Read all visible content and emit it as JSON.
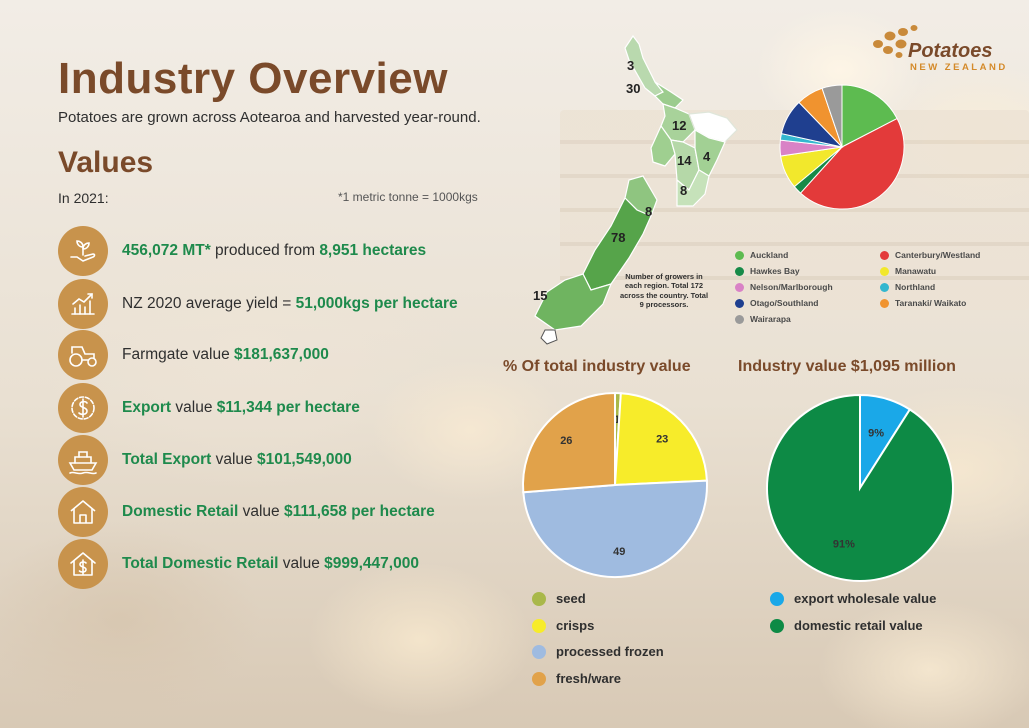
{
  "header": {
    "title": "Industry Overview",
    "subtitle": "Potatoes are grown across Aotearoa and harvested year-round.",
    "values_heading": "Values",
    "year_label": "In 2021:",
    "tonne_note": "*1 metric tonne = 1000kgs"
  },
  "logo": {
    "word": "Potatoes",
    "sub": "NEW ZEALAND",
    "icon": "potato-dots-logo-icon"
  },
  "stats": [
    {
      "icon": "seedling-hand-icon",
      "parts": [
        {
          "t": "456,072 MT*",
          "g": true
        },
        {
          "t": " produced from ",
          "g": false
        },
        {
          "t": "8,951 hectares",
          "g": true
        }
      ]
    },
    {
      "icon": "yield-chart-icon",
      "parts": [
        {
          "t": "NZ 2020 average yield = ",
          "g": false
        },
        {
          "t": "51,000kgs per hectare",
          "g": true
        }
      ]
    },
    {
      "icon": "tractor-icon",
      "parts": [
        {
          "t": "Farmgate value ",
          "g": false
        },
        {
          "t": "$181,637,000",
          "g": true
        }
      ]
    },
    {
      "icon": "dollar-gear-icon",
      "parts": [
        {
          "t": "Export",
          "g": true
        },
        {
          "t": " value ",
          "g": false
        },
        {
          "t": "$11,344 per hectare",
          "g": true
        }
      ]
    },
    {
      "icon": "cargo-ship-icon",
      "parts": [
        {
          "t": "Total Export",
          "g": true
        },
        {
          "t": " value ",
          "g": false
        },
        {
          "t": "$101,549,000",
          "g": true
        }
      ]
    },
    {
      "icon": "house-icon",
      "parts": [
        {
          "t": "Domestic Retail",
          "g": true
        },
        {
          "t": " value ",
          "g": false
        },
        {
          "t": "$111,658  per hectare",
          "g": true
        }
      ]
    },
    {
      "icon": "house-dollar-icon",
      "parts": [
        {
          "t": "Total Domestic Retail",
          "g": true
        },
        {
          "t": " value ",
          "g": false
        },
        {
          "t": "$999,447,000",
          "g": true
        }
      ]
    }
  ],
  "map": {
    "note": "Number of growers in each region. Total 172 across the country. Total 9 processors.",
    "labels": [
      "3",
      "30",
      "12",
      "14",
      "4",
      "8",
      "8",
      "78",
      "15"
    ]
  },
  "colors": {
    "auckland": "#5dbb50",
    "hawkes_bay": "#178a48",
    "nelson": "#d982c6",
    "otago": "#1f3f8f",
    "wairarapa": "#9a9a9a",
    "canterbury": "#e33a3a",
    "manawatu": "#f2e82c",
    "northland": "#33b7cf",
    "taranaki": "#f0932f",
    "seed": "#a9b84a",
    "crisps": "#f7ec2a",
    "processed": "#9fbbe0",
    "fresh": "#e1a24a",
    "export_wholesale": "#1aa8e8",
    "domestic_retail": "#0d8a45",
    "brown": "#7a4a2a",
    "green_text": "#1e8a4c"
  },
  "region_legend": [
    {
      "label": "Auckland",
      "color": "#5dbb50"
    },
    {
      "label": "Canterbury/Westland",
      "color": "#e33a3a"
    },
    {
      "label": "Hawkes Bay",
      "color": "#178a48"
    },
    {
      "label": "Manawatu",
      "color": "#f2e82c"
    },
    {
      "label": "Nelson/Marlborough",
      "color": "#d982c6"
    },
    {
      "label": "Northland",
      "color": "#33b7cf"
    },
    {
      "label": "Otago/Southland",
      "color": "#1f3f8f"
    },
    {
      "label": "Taranaki/ Waikato",
      "color": "#f0932f"
    },
    {
      "label": "Wairarapa",
      "color": "#9a9a9a"
    }
  ],
  "chart_data": [
    {
      "type": "pie",
      "title": "",
      "categories": [
        "Auckland",
        "Canterbury/Westland",
        "Hawkes Bay",
        "Manawatu",
        "Nelson/Marlborough",
        "Northland",
        "Otago/Southland",
        "Taranaki/ Waikato",
        "Wairarapa"
      ],
      "values": [
        17.4,
        44.2,
        2.3,
        8.7,
        4.1,
        1.7,
        9.3,
        7.0,
        5.2
      ],
      "order": [
        "Auckland",
        "Canterbury/Westland",
        "Hawkes Bay",
        "Manawatu",
        "Nelson/Marlborough",
        "Northland",
        "Otago/Southland",
        "Taranaki/ Waikato",
        "Wairarapa"
      ],
      "legend": "below"
    },
    {
      "type": "pie",
      "title": "% Of total industry value",
      "categories": [
        "seed",
        "crisps",
        "processed frozen",
        "fresh/ware"
      ],
      "values": [
        1,
        23,
        49,
        26
      ],
      "data_labels": [
        "1",
        "23",
        "49",
        "26"
      ],
      "legend": "below"
    },
    {
      "type": "pie",
      "title": "Industry value $1,095 million",
      "categories": [
        "export wholesale value",
        "domestic retail value"
      ],
      "values": [
        9,
        91
      ],
      "data_labels": [
        "9%",
        "91%"
      ],
      "legend": "below"
    }
  ]
}
